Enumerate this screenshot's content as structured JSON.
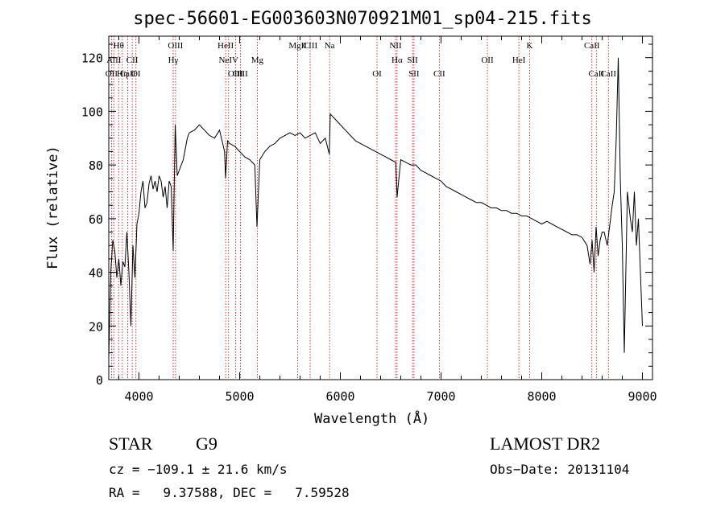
{
  "chart_data": {
    "type": "line",
    "title": "spec-56601-EG003603N070921M01_sp04-215.fits",
    "xlabel": "Wavelength (Å)",
    "ylabel": "Flux (relative)",
    "xlim": [
      3700,
      9100
    ],
    "ylim": [
      0,
      128
    ],
    "xticks": [
      4000,
      5000,
      6000,
      7000,
      8000,
      9000
    ],
    "yticks": [
      0,
      20,
      40,
      60,
      80,
      100,
      120
    ],
    "line_color": "#000000",
    "marker_color": "#cc0000",
    "grid": false,
    "series": [
      {
        "x": [
          3700,
          3720,
          3740,
          3760,
          3780,
          3800,
          3820,
          3840,
          3860,
          3880,
          3900,
          3920,
          3940,
          3960,
          3980,
          4000,
          4020,
          4040,
          4060,
          4080,
          4100,
          4120,
          4140,
          4160,
          4180,
          4200,
          4220,
          4240,
          4260,
          4280,
          4300,
          4320,
          4340,
          4360,
          4380,
          4400,
          4420,
          4440,
          4460,
          4480,
          4500,
          4550,
          4600,
          4650,
          4700,
          4750,
          4800,
          4850,
          4860,
          4880,
          4900,
          4950,
          5000,
          5050,
          5100,
          5150,
          5172,
          5200,
          5250,
          5300,
          5350,
          5400,
          5450,
          5500,
          5550,
          5600,
          5650,
          5700,
          5750,
          5800,
          5850,
          5890,
          5900,
          5950,
          6000,
          6050,
          6100,
          6150,
          6200,
          6250,
          6300,
          6350,
          6400,
          6450,
          6500,
          6550,
          6563,
          6600,
          6650,
          6700,
          6750,
          6800,
          6850,
          6900,
          6950,
          7000,
          7050,
          7100,
          7150,
          7200,
          7250,
          7300,
          7350,
          7400,
          7450,
          7500,
          7550,
          7600,
          7650,
          7700,
          7750,
          7800,
          7850,
          7900,
          7950,
          8000,
          8050,
          8100,
          8150,
          8200,
          8250,
          8300,
          8350,
          8400,
          8450,
          8480,
          8500,
          8520,
          8540,
          8560,
          8580,
          8600,
          8620,
          8650,
          8700,
          8720,
          8740,
          8760,
          8780,
          8800,
          8820,
          8850,
          8880,
          8900,
          8920,
          8940,
          8960,
          8980,
          9000
        ],
        "y": [
          8,
          40,
          52,
          48,
          38,
          45,
          35,
          44,
          42,
          55,
          40,
          20,
          50,
          38,
          58,
          62,
          70,
          74,
          64,
          66,
          73,
          76,
          71,
          74,
          70,
          76,
          74,
          68,
          72,
          64,
          74,
          72,
          48,
          95,
          76,
          78,
          80,
          82,
          86,
          90,
          92,
          93,
          95,
          93,
          91,
          90,
          93,
          85,
          75,
          89,
          88,
          87,
          85,
          83,
          82,
          80,
          57,
          82,
          85,
          87,
          88,
          90,
          91,
          92,
          91,
          92,
          90,
          91,
          92,
          88,
          90,
          84,
          99,
          97,
          95,
          93,
          91,
          89,
          88,
          87,
          86,
          85,
          84,
          83,
          82,
          81,
          68,
          82,
          81,
          80,
          80,
          78,
          77,
          76,
          75,
          74,
          72,
          71,
          70,
          69,
          68,
          67,
          66,
          66,
          65,
          64,
          64,
          63,
          63,
          62,
          62,
          61,
          61,
          60,
          59,
          58,
          59,
          58,
          57,
          56,
          55,
          54,
          54,
          53,
          50,
          43,
          52,
          40,
          57,
          46,
          52,
          55,
          55,
          50,
          65,
          70,
          90,
          120,
          75,
          50,
          10,
          70,
          60,
          55,
          70,
          50,
          60,
          40,
          20
        ]
      }
    ],
    "line_markers": [
      {
        "x": 3727,
        "label": "OII",
        "row": 3
      },
      {
        "x": 3750,
        "label": "AlII",
        "row": 2
      },
      {
        "x": 3798,
        "label": "Hθ",
        "row": 1
      },
      {
        "x": 3835,
        "label": "Hη",
        "row": 3
      },
      {
        "x": 3889,
        "label": "CaII",
        "row": 3
      },
      {
        "x": 3933,
        "label": "CII",
        "row": 2
      },
      {
        "x": 3970,
        "label": "OI",
        "row": 3
      },
      {
        "x": 4340,
        "label": "Hγ",
        "row": 2
      },
      {
        "x": 4363,
        "label": "OIII",
        "row": 1
      },
      {
        "x": 4861,
        "label": "HeII",
        "row": 1
      },
      {
        "x": 4890,
        "label": "NeIV",
        "row": 2
      },
      {
        "x": 4959,
        "label": "OIII",
        "row": 3
      },
      {
        "x": 5007,
        "label": "OIII",
        "row": 3
      },
      {
        "x": 5175,
        "label": "Mg",
        "row": 2
      },
      {
        "x": 5577,
        "label": "MgII",
        "row": 1
      },
      {
        "x": 5700,
        "label": "CIII",
        "row": 1
      },
      {
        "x": 5893,
        "label": "Na",
        "row": 1
      },
      {
        "x": 6364,
        "label": "OI",
        "row": 3
      },
      {
        "x": 6548,
        "label": "NII",
        "row": 1
      },
      {
        "x": 6563,
        "label": "Hα",
        "row": 2
      },
      {
        "x": 6717,
        "label": "SII",
        "row": 2
      },
      {
        "x": 6731,
        "label": "SII",
        "row": 3
      },
      {
        "x": 6983,
        "label": "CII",
        "row": 3
      },
      {
        "x": 7460,
        "label": "OII",
        "row": 2
      },
      {
        "x": 7773,
        "label": "HeI",
        "row": 2
      },
      {
        "x": 7880,
        "label": "K",
        "row": 1
      },
      {
        "x": 8498,
        "label": "CaII",
        "row": 1
      },
      {
        "x": 8542,
        "label": "CaII",
        "row": 3
      },
      {
        "x": 8662,
        "label": "CaII",
        "row": 3
      }
    ]
  },
  "info": {
    "class": "STAR",
    "subclass": "G9",
    "survey": "LAMOST DR2",
    "cz": "cz = −109.1 ± 21.6 km/s",
    "obs_date": "Obs−Date: 20131104",
    "coords": "RA =   9.37588, DEC =   7.59528"
  }
}
